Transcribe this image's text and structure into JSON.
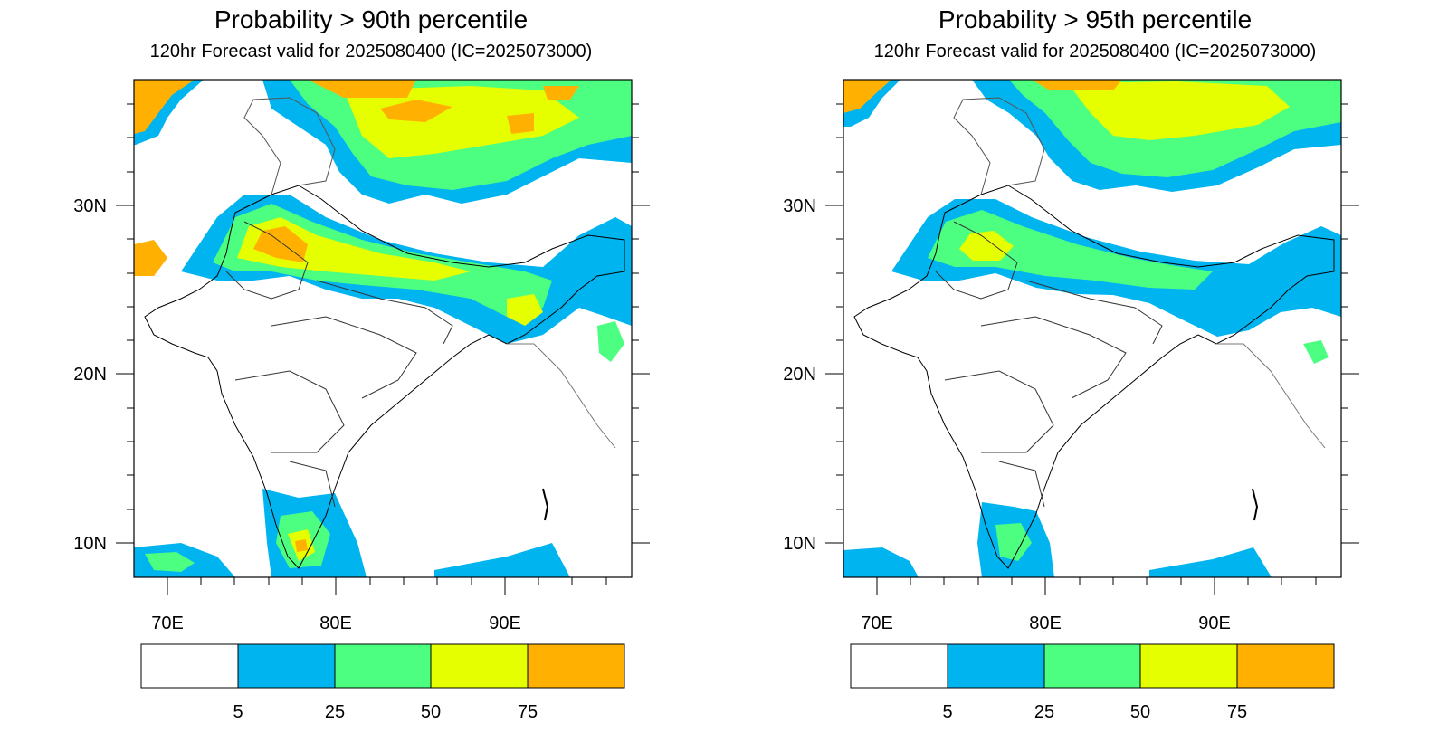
{
  "panels": [
    {
      "title": "Probability > 90th percentile",
      "subtitle": "120hr Forecast valid for 2025080400 (IC=2025073000)"
    },
    {
      "title": "Probability > 95th percentile",
      "subtitle": "120hr Forecast valid for 2025080400 (IC=2025073000)"
    }
  ],
  "axes": {
    "lat_ticks": [
      "30N",
      "20N",
      "10N"
    ],
    "lon_ticks": [
      "70E",
      "80E",
      "90E"
    ],
    "lat_range": [
      8,
      37.5
    ],
    "lon_range": [
      68,
      97.5
    ]
  },
  "colorbar": {
    "labels": [
      "5",
      "25",
      "50",
      "75"
    ],
    "colors": [
      "#ffffff",
      "#00b4f0",
      "#4cff80",
      "#e6ff00",
      "#ffb000"
    ]
  },
  "colors": {
    "blue": "#00b4f0",
    "green": "#4cff80",
    "yellow": "#e6ff00",
    "orange": "#ffb000"
  }
}
